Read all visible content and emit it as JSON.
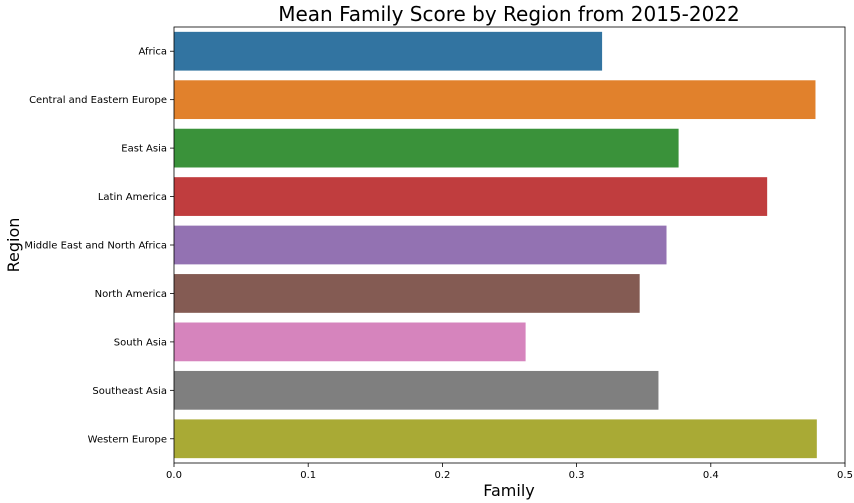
{
  "chart_data": {
    "type": "bar",
    "orientation": "horizontal",
    "title": "Mean Family Score by Region from 2015-2022",
    "xlabel": "Family",
    "ylabel": "Region",
    "xlim": [
      0,
      0.5
    ],
    "xticks": [
      0.0,
      0.1,
      0.2,
      0.3,
      0.4,
      0.5
    ],
    "xtick_labels": [
      "0.0",
      "0.1",
      "0.2",
      "0.3",
      "0.4",
      "0.5"
    ],
    "grid": false,
    "legend": "none",
    "categories": [
      "Africa",
      "Central and Eastern Europe",
      "East Asia",
      "Latin America",
      "Middle East and North Africa",
      "North America",
      "South Asia",
      "Southeast Asia",
      "Western Europe"
    ],
    "values": [
      0.319,
      0.478,
      0.376,
      0.442,
      0.367,
      0.347,
      0.262,
      0.361,
      0.479
    ],
    "colors": [
      "#3274a1",
      "#e1812c",
      "#3a923a",
      "#c03d3e",
      "#9372b2",
      "#845b53",
      "#d684bd",
      "#7f7f7f",
      "#a9aa35"
    ]
  }
}
